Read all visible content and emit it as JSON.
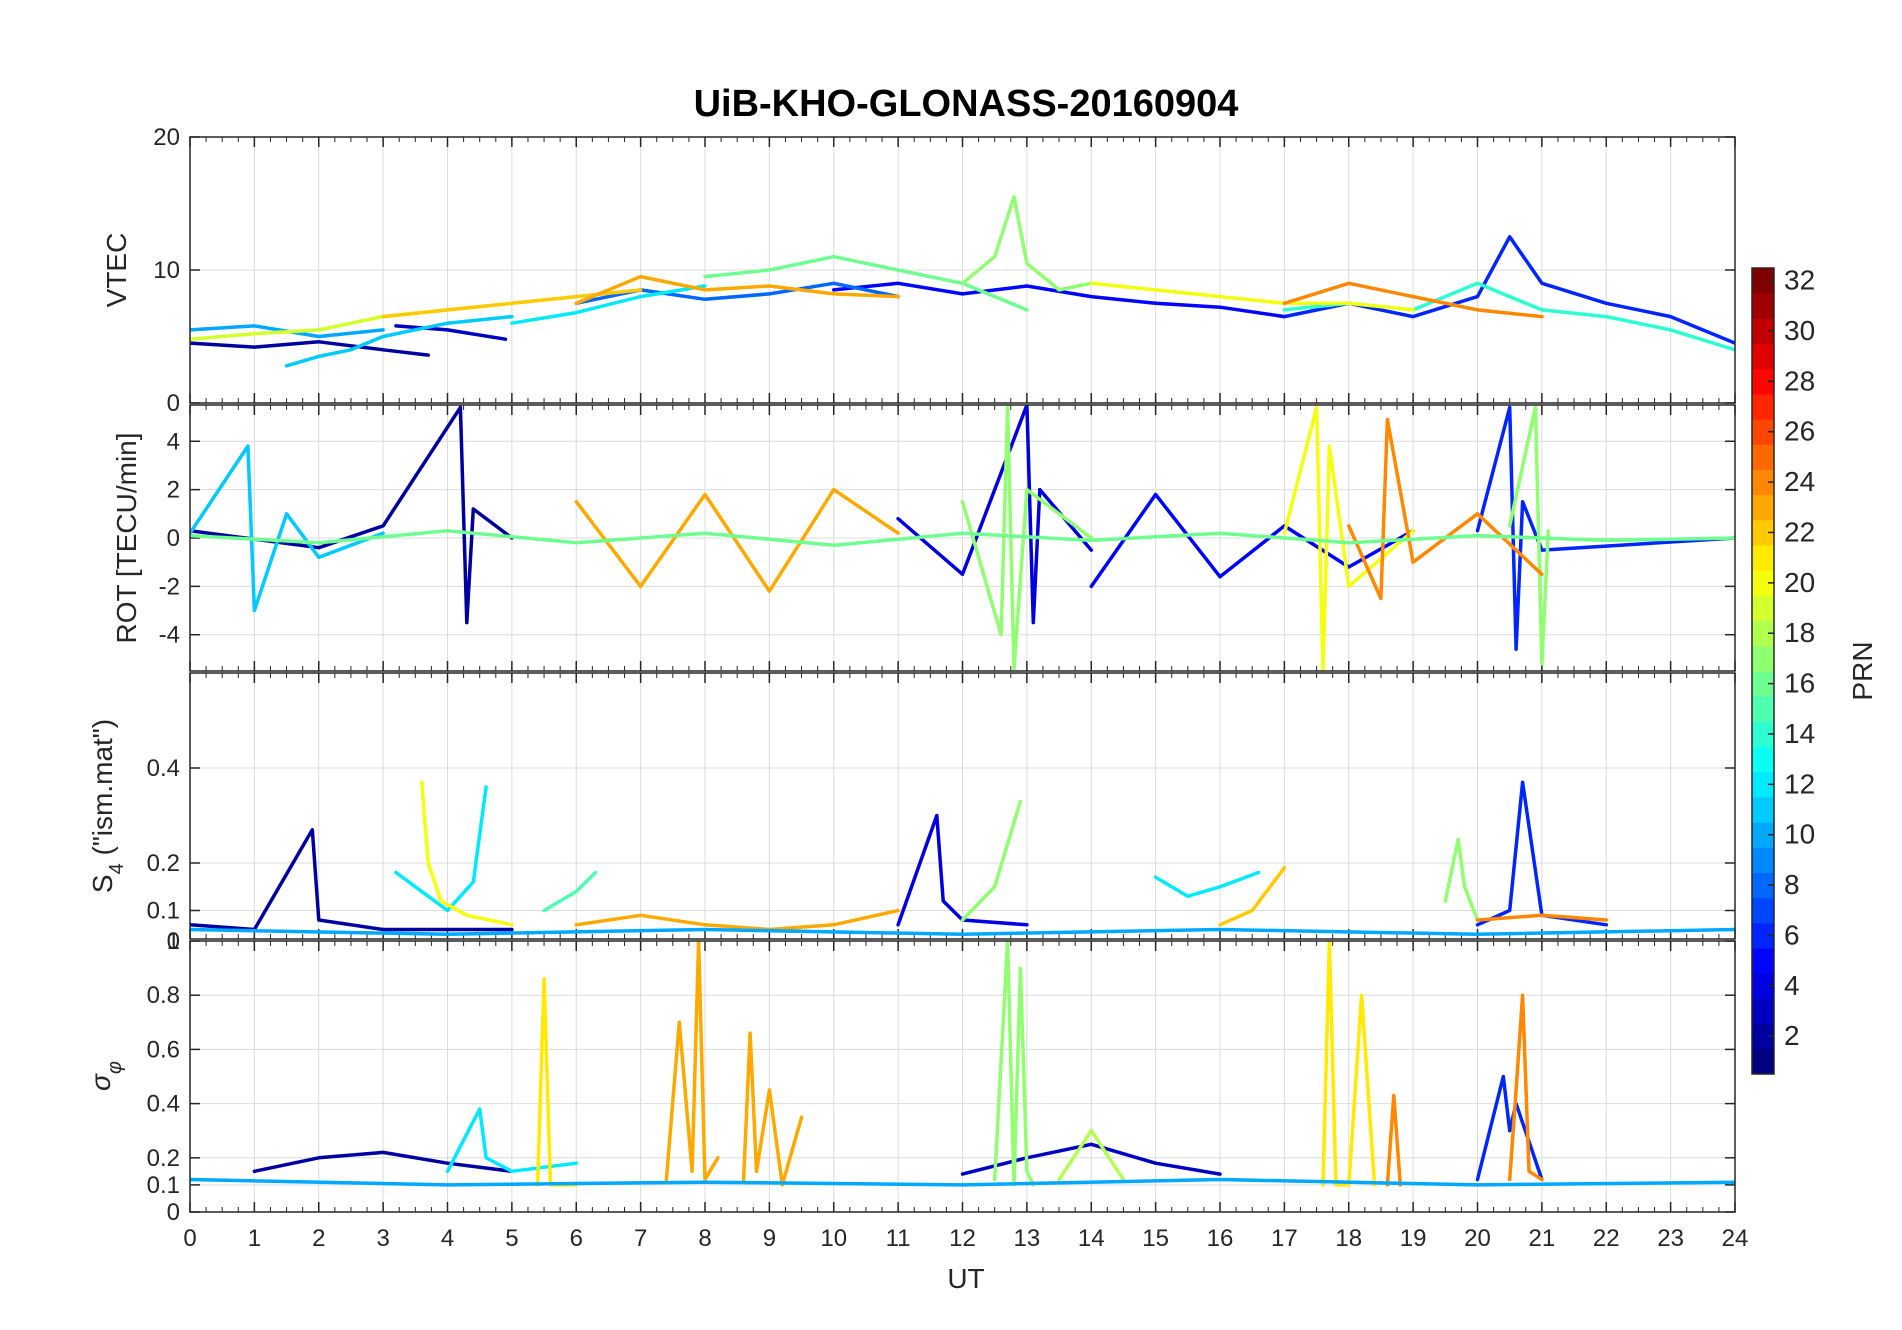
{
  "chart_data": {
    "type": "line",
    "title": "UiB-KHO-GLONASS-20160904",
    "xlabel": "UT",
    "x_range": [
      0,
      24
    ],
    "x_ticks": [
      "0",
      "1",
      "2",
      "3",
      "4",
      "5",
      "6",
      "7",
      "8",
      "9",
      "10",
      "11",
      "12",
      "13",
      "14",
      "15",
      "16",
      "17",
      "18",
      "19",
      "20",
      "21",
      "22",
      "23",
      "24"
    ],
    "grid": true,
    "colorbar": {
      "label": "PRN",
      "colormap": "jet",
      "range": [
        1,
        32
      ],
      "ticks": [
        "2",
        "4",
        "6",
        "8",
        "10",
        "12",
        "14",
        "16",
        "18",
        "20",
        "22",
        "24",
        "26",
        "28",
        "30",
        "32"
      ],
      "placement": "right"
    },
    "panels": [
      {
        "id": "vtec",
        "ylabel": "VTEC",
        "ylim": [
          0,
          20
        ],
        "yticks": [
          0,
          10,
          20
        ],
        "ytick_labels": [
          "0",
          "10",
          "20"
        ],
        "series": [
          {
            "prn": 2,
            "x": [
              0,
              1,
              2,
              3,
              3.7
            ],
            "y": [
              4.5,
              4.2,
              4.6,
              4.0,
              3.6
            ]
          },
          {
            "prn": 3,
            "x": [
              3.2,
              4,
              4.9
            ],
            "y": [
              5.8,
              5.5,
              4.8
            ]
          },
          {
            "prn": 5,
            "x": [
              10,
              11,
              12,
              13,
              14,
              15,
              16,
              17
            ],
            "y": [
              8.5,
              9.0,
              8.2,
              8.8,
              8.0,
              7.5,
              7.2,
              6.5
            ]
          },
          {
            "prn": 6,
            "x": [
              17,
              18,
              19,
              20,
              20.5,
              21,
              22,
              23,
              24
            ],
            "y": [
              6.5,
              7.5,
              6.5,
              8.0,
              12.5,
              9.0,
              7.5,
              6.5,
              4.5
            ]
          },
          {
            "prn": 8,
            "x": [
              6,
              7,
              8,
              9,
              10,
              11
            ],
            "y": [
              7.5,
              8.5,
              7.8,
              8.2,
              9.0,
              8.0
            ]
          },
          {
            "prn": 10,
            "x": [
              0,
              1,
              2,
              3
            ],
            "y": [
              5.5,
              5.8,
              5.0,
              5.5
            ]
          },
          {
            "prn": 11,
            "x": [
              1.5,
              2,
              2.5,
              3,
              4,
              5
            ],
            "y": [
              2.8,
              3.5,
              4.0,
              5.0,
              6.0,
              6.5
            ]
          },
          {
            "prn": 12,
            "x": [
              5,
              6,
              7,
              8
            ],
            "y": [
              6.0,
              6.8,
              8.0,
              8.8
            ]
          },
          {
            "prn": 14,
            "x": [
              17,
              18,
              19,
              20,
              21,
              22,
              23,
              24
            ],
            "y": [
              7.0,
              7.5,
              7.0,
              9.0,
              7.0,
              6.5,
              5.5,
              4.0
            ]
          },
          {
            "prn": 16,
            "x": [
              8,
              9,
              10,
              11,
              12,
              13
            ],
            "y": [
              9.5,
              10.0,
              11.0,
              10.0,
              9.0,
              7.0
            ]
          },
          {
            "prn": 17,
            "x": [
              12,
              12.5,
              12.8,
              13,
              13.5,
              14
            ],
            "y": [
              9.0,
              11.0,
              15.5,
              10.5,
              8.5,
              9.0
            ]
          },
          {
            "prn": 19,
            "x": [
              0,
              1,
              2,
              3,
              4,
              5
            ],
            "y": [
              4.8,
              5.2,
              5.5,
              6.5,
              7.0,
              7.5
            ]
          },
          {
            "prn": 20,
            "x": [
              14,
              15,
              16,
              17,
              18,
              19
            ],
            "y": [
              9.0,
              8.5,
              8.0,
              7.5,
              7.5,
              7.0
            ]
          },
          {
            "prn": 22,
            "x": [
              3,
              4,
              5,
              6,
              7
            ],
            "y": [
              6.5,
              7.0,
              7.5,
              8.0,
              8.5
            ]
          },
          {
            "prn": 23,
            "x": [
              6,
              7,
              8,
              9,
              10,
              11
            ],
            "y": [
              7.5,
              9.5,
              8.5,
              8.8,
              8.2,
              8.0
            ]
          },
          {
            "prn": 24,
            "x": [
              17,
              18,
              19,
              20,
              21
            ],
            "y": [
              7.5,
              9.0,
              8.0,
              7.0,
              6.5
            ]
          }
        ]
      },
      {
        "id": "rot",
        "ylabel": "ROT [TECU/min]",
        "ylim": [
          -5.5,
          5.5
        ],
        "yticks": [
          -4,
          -2,
          0,
          2,
          4
        ],
        "ytick_labels": [
          "-4",
          "-2",
          "0",
          "2",
          "4"
        ],
        "series": [
          {
            "prn": 2,
            "x": [
              0,
              2,
              3,
              4.2,
              4.3,
              4.4,
              5
            ],
            "y": [
              0.3,
              -0.4,
              0.5,
              5.4,
              -3.5,
              1.2,
              0
            ]
          },
          {
            "prn": 4,
            "x": [
              11,
              12,
              13,
              13.1,
              13.2,
              14
            ],
            "y": [
              0.8,
              -1.5,
              5.5,
              -3.5,
              2.0,
              -0.5
            ]
          },
          {
            "prn": 5,
            "x": [
              14,
              15,
              16,
              17,
              18,
              19
            ],
            "y": [
              -2.0,
              1.8,
              -1.6,
              0.5,
              -1.2,
              0.3
            ]
          },
          {
            "prn": 6,
            "x": [
              20,
              20.5,
              20.6,
              20.7,
              21,
              24
            ],
            "y": [
              0.3,
              5.4,
              -4.6,
              1.5,
              -0.5,
              0
            ]
          },
          {
            "prn": 11,
            "x": [
              0,
              0.9,
              1.0,
              1.5,
              2,
              3
            ],
            "y": [
              0.2,
              3.8,
              -3.0,
              1.0,
              -0.8,
              0.2
            ]
          },
          {
            "prn": 17,
            "x": [
              12,
              12.6,
              12.7,
              12.8,
              13,
              14
            ],
            "y": [
              1.5,
              -4.0,
              5.4,
              -5.4,
              2.0,
              0
            ]
          },
          {
            "prn": 17,
            "x": [
              20.5,
              20.9,
              21.0,
              21.1
            ],
            "y": [
              0.5,
              5.4,
              -5.2,
              0.3
            ]
          },
          {
            "prn": 20,
            "x": [
              17,
              17.5,
              17.6,
              17.7,
              18,
              19
            ],
            "y": [
              0.2,
              5.4,
              -5.5,
              3.8,
              -2.0,
              0.3
            ]
          },
          {
            "prn": 23,
            "x": [
              6,
              7,
              8,
              9,
              10,
              11
            ],
            "y": [
              1.5,
              -2.0,
              1.8,
              -2.2,
              2.0,
              0.2
            ]
          },
          {
            "prn": 24,
            "x": [
              18,
              18.5,
              18.6,
              19,
              20,
              21
            ],
            "y": [
              0.5,
              -2.5,
              4.9,
              -1.0,
              1.0,
              -1.5
            ]
          },
          {
            "prn": 16,
            "x": [
              0,
              2,
              4,
              6,
              8,
              10,
              12,
              14,
              16,
              18,
              20,
              22,
              24
            ],
            "y": [
              0.1,
              -0.2,
              0.3,
              -0.2,
              0.2,
              -0.3,
              0.2,
              -0.1,
              0.2,
              -0.2,
              0.1,
              -0.1,
              0
            ]
          }
        ]
      },
      {
        "id": "s4",
        "ylabel": "S4 (\"ism.mat\")",
        "ylabel_main": "S",
        "ylabel_sub": "4",
        "ylabel_rest": " (\"ism.mat\")",
        "ylim": [
          0.04,
          0.6
        ],
        "yticks": [
          0.1,
          0.2,
          0.4
        ],
        "ytick_labels": [
          "0.1",
          "0.2",
          "0.4"
        ],
        "series": [
          {
            "prn": 2,
            "x": [
              0,
              1,
              1.9,
              2.0,
              3,
              4,
              5
            ],
            "y": [
              0.07,
              0.06,
              0.27,
              0.08,
              0.06,
              0.06,
              0.06
            ]
          },
          {
            "prn": 4,
            "x": [
              11,
              11.6,
              11.7,
              12,
              13
            ],
            "y": [
              0.07,
              0.3,
              0.12,
              0.08,
              0.07
            ]
          },
          {
            "prn": 6,
            "x": [
              20,
              20.5,
              20.7,
              21,
              22
            ],
            "y": [
              0.07,
              0.1,
              0.37,
              0.09,
              0.07
            ]
          },
          {
            "prn": 12,
            "x": [
              3.2,
              3.6,
              4.0,
              4.4,
              4.6
            ],
            "y": [
              0.18,
              0.14,
              0.1,
              0.16,
              0.36
            ]
          },
          {
            "prn": 12,
            "x": [
              15,
              15.5,
              16,
              16.6
            ],
            "y": [
              0.17,
              0.13,
              0.15,
              0.18
            ]
          },
          {
            "prn": 15,
            "x": [
              5.5,
              6,
              6.3
            ],
            "y": [
              0.1,
              0.14,
              0.18
            ]
          },
          {
            "prn": 17,
            "x": [
              12,
              12.5,
              12.9
            ],
            "y": [
              0.08,
              0.15,
              0.33
            ]
          },
          {
            "prn": 17,
            "x": [
              19.5,
              19.7,
              19.8,
              20
            ],
            "y": [
              0.12,
              0.25,
              0.15,
              0.08
            ]
          },
          {
            "prn": 20,
            "x": [
              3.6,
              3.7,
              3.9,
              4.3,
              5
            ],
            "y": [
              0.37,
              0.2,
              0.12,
              0.09,
              0.07
            ]
          },
          {
            "prn": 22,
            "x": [
              16,
              16.5,
              17
            ],
            "y": [
              0.07,
              0.1,
              0.19
            ]
          },
          {
            "prn": 23,
            "x": [
              6,
              7,
              8,
              9,
              10,
              11
            ],
            "y": [
              0.07,
              0.09,
              0.07,
              0.06,
              0.07,
              0.1
            ]
          },
          {
            "prn": 24,
            "x": [
              20,
              21,
              22
            ],
            "y": [
              0.08,
              0.09,
              0.08
            ]
          },
          {
            "prn": 10,
            "x": [
              0,
              4,
              8,
              12,
              16,
              20,
              24
            ],
            "y": [
              0.06,
              0.05,
              0.06,
              0.05,
              0.06,
              0.05,
              0.06
            ]
          }
        ]
      },
      {
        "id": "sigma_phi",
        "ylabel": "σφ",
        "ylabel_main": "σ",
        "ylabel_sub": "φ",
        "ylim": [
          0,
          1
        ],
        "yticks": [
          0,
          0.1,
          0.2,
          0.4,
          0.6,
          0.8,
          1
        ],
        "ytick_labels": [
          "0",
          "0.1",
          "0.2",
          "0.4",
          "0.6",
          "0.8",
          "1"
        ],
        "top_tick_overlap": "0",
        "series": [
          {
            "prn": 2,
            "x": [
              1,
              2,
              3,
              4,
              5
            ],
            "y": [
              0.15,
              0.2,
              0.22,
              0.18,
              0.15
            ]
          },
          {
            "prn": 3,
            "x": [
              12,
              13,
              14,
              15,
              16
            ],
            "y": [
              0.14,
              0.2,
              0.25,
              0.18,
              0.14
            ]
          },
          {
            "prn": 6,
            "x": [
              20,
              20.4,
              20.5,
              20.6,
              21
            ],
            "y": [
              0.12,
              0.5,
              0.3,
              0.4,
              0.12
            ]
          },
          {
            "prn": 12,
            "x": [
              4,
              4.5,
              4.6,
              5,
              6
            ],
            "y": [
              0.15,
              0.38,
              0.2,
              0.15,
              0.18
            ]
          },
          {
            "prn": 17,
            "x": [
              12.5,
              12.7,
              12.8,
              12.9,
              13.0,
              13.1
            ],
            "y": [
              0.12,
              1.0,
              0.1,
              0.9,
              0.15,
              0.1
            ]
          },
          {
            "prn": 18,
            "x": [
              13.5,
              14,
              14.5
            ],
            "y": [
              0.12,
              0.3,
              0.12
            ]
          },
          {
            "prn": 21,
            "x": [
              5.4,
              5.5,
              5.6,
              6
            ],
            "y": [
              0.1,
              0.86,
              0.1,
              0.1
            ]
          },
          {
            "prn": 21,
            "x": [
              17.6,
              17.7,
              17.8,
              18,
              18.2,
              18.4
            ],
            "y": [
              0.1,
              1.0,
              0.1,
              0.1,
              0.8,
              0.1
            ]
          },
          {
            "prn": 23,
            "x": [
              7.4,
              7.6,
              7.8,
              7.9,
              8.0,
              8.2
            ],
            "y": [
              0.12,
              0.7,
              0.15,
              1.0,
              0.12,
              0.2
            ]
          },
          {
            "prn": 23,
            "x": [
              8.6,
              8.7,
              8.8,
              9.0,
              9.2,
              9.5
            ],
            "y": [
              0.12,
              0.66,
              0.15,
              0.45,
              0.1,
              0.35
            ]
          },
          {
            "prn": 24,
            "x": [
              20.5,
              20.6,
              20.7,
              20.8,
              21
            ],
            "y": [
              0.12,
              0.45,
              0.8,
              0.15,
              0.12
            ]
          },
          {
            "prn": 24,
            "x": [
              18.6,
              18.7,
              18.8
            ],
            "y": [
              0.1,
              0.43,
              0.1
            ]
          },
          {
            "prn": 10,
            "x": [
              0,
              4,
              8,
              12,
              16,
              20,
              24
            ],
            "y": [
              0.12,
              0.1,
              0.11,
              0.1,
              0.12,
              0.1,
              0.11
            ]
          }
        ]
      }
    ]
  }
}
